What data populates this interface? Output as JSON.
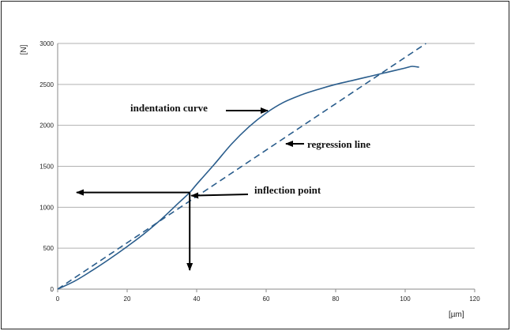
{
  "chart_data": {
    "type": "line",
    "title": "",
    "xlabel": "[µm]",
    "ylabel": "[N]",
    "xlim": [
      0,
      120
    ],
    "ylim": [
      0,
      3000
    ],
    "x_ticks": [
      "0",
      "20",
      "40",
      "60",
      "80",
      "100",
      "120"
    ],
    "y_ticks": [
      "0",
      "500",
      "1000",
      "1500",
      "2000",
      "2500",
      "3000"
    ],
    "grid": "horizontal",
    "colors": {
      "curve": "#2a5d8c",
      "regression": "#2a5d8c",
      "arrow": "#000000"
    },
    "series": [
      {
        "style": "solid",
        "x": [
          0,
          5,
          10,
          15,
          20,
          25,
          30,
          35,
          38,
          40,
          45,
          50,
          55,
          60,
          65,
          70,
          75,
          80,
          85,
          90,
          95,
          100,
          102,
          104
        ],
        "y": [
          0,
          100,
          230,
          370,
          520,
          680,
          860,
          1060,
          1180,
          1280,
          1520,
          1770,
          1980,
          2150,
          2280,
          2370,
          2440,
          2500,
          2550,
          2600,
          2650,
          2700,
          2720,
          2710
        ]
      },
      {
        "style": "dashed",
        "x": [
          0,
          106
        ],
        "y": [
          0,
          3000
        ]
      }
    ],
    "inflection_point": {
      "x": 38,
      "y": 1180
    },
    "annotations": [
      {
        "text": "indentation curve"
      },
      {
        "text": "regression line"
      },
      {
        "text": "inflection point"
      }
    ]
  }
}
